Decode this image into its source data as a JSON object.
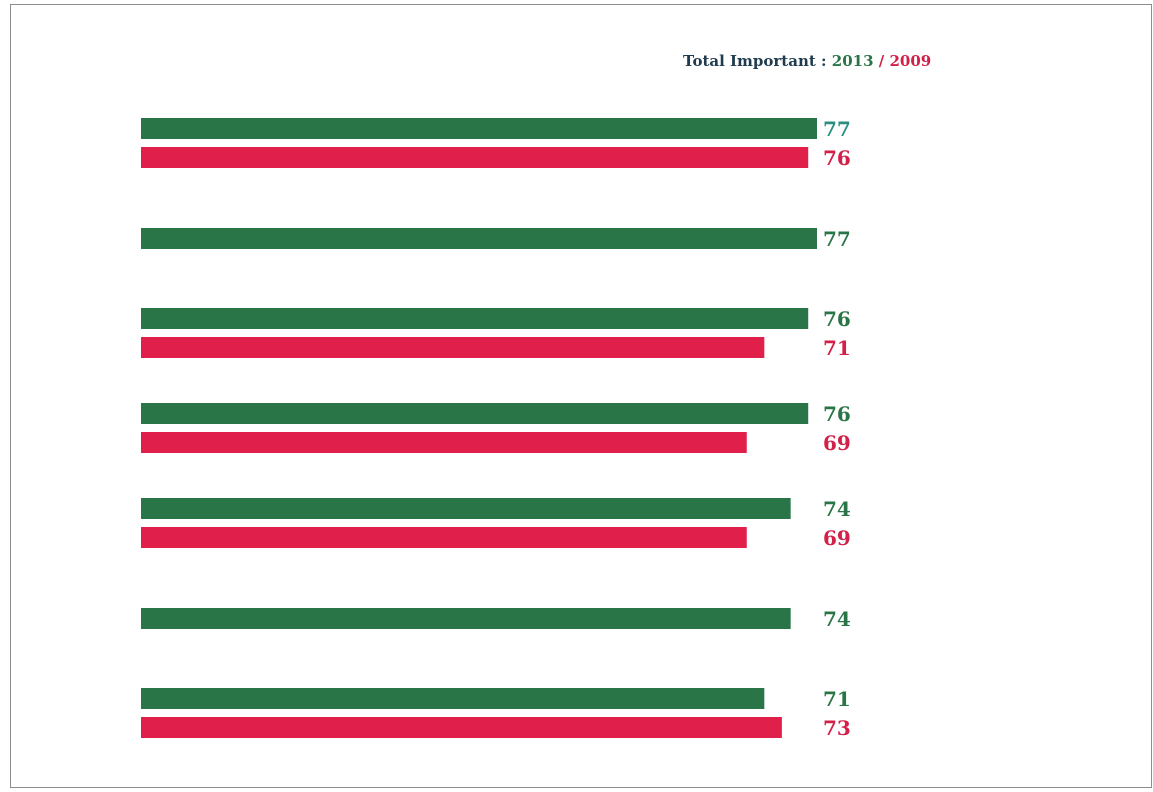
{
  "legend": {
    "title": "Total Important :",
    "year_a": "2013",
    "separator": "/",
    "year_b": "2009"
  },
  "colors": {
    "series_2013": "#2a7547",
    "series_2009": "#e0204a",
    "label_2013": "#2a7547",
    "label_2009": "#d22048",
    "label_highlight": "#2a8f7f"
  },
  "chart_data": {
    "type": "bar",
    "orientation": "horizontal",
    "categories": [
      "",
      "",
      "",
      "",
      "",
      "",
      ""
    ],
    "series": [
      {
        "name": "2013",
        "values": [
          77,
          77,
          76,
          76,
          74,
          74,
          71
        ]
      },
      {
        "name": "2009",
        "values": [
          76,
          null,
          71,
          69,
          69,
          null,
          73
        ]
      }
    ],
    "xlim": [
      0,
      77
    ],
    "grid": false,
    "legend_position": "top-right",
    "title": "",
    "xlabel": "",
    "ylabel": ""
  }
}
